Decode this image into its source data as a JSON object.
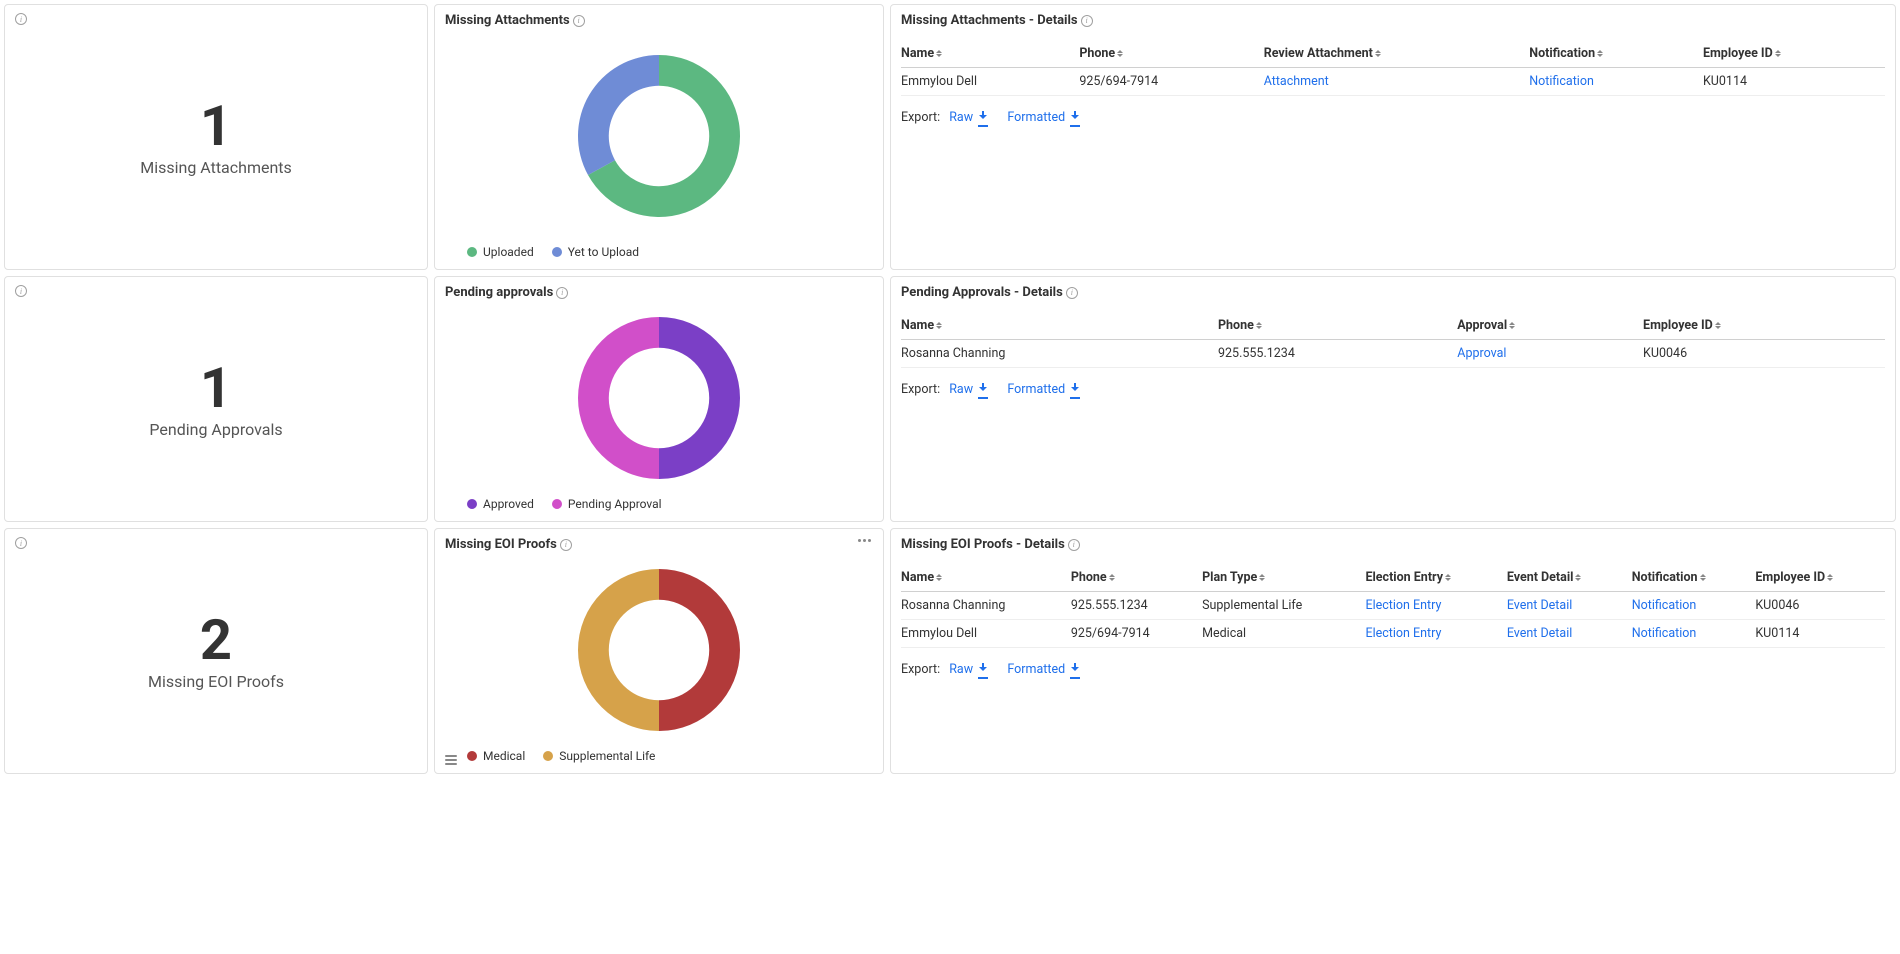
{
  "colors": {
    "link": "#1f6feb",
    "border": "#e0e0e0",
    "text": "#333333"
  },
  "stats": {
    "missing_attachments": {
      "value": "1",
      "label": "Missing Attachments"
    },
    "pending_approvals": {
      "value": "1",
      "label": "Pending Approvals"
    },
    "missing_eoi": {
      "value": "2",
      "label": "Missing EOI Proofs"
    }
  },
  "charts": {
    "missing_attachments": {
      "title": "Missing Attachments",
      "type": "donut",
      "inner_radius_pct": 62,
      "slices": [
        {
          "label": "Uploaded",
          "value": 67,
          "color": "#5cb881"
        },
        {
          "label": "Yet to Upload",
          "value": 33,
          "color": "#6f8cd6"
        }
      ]
    },
    "pending_approvals": {
      "title": "Pending approvals",
      "type": "donut",
      "inner_radius_pct": 62,
      "slices": [
        {
          "label": "Approved",
          "value": 50,
          "color": "#7b3fc6"
        },
        {
          "label": "Pending Approval",
          "value": 50,
          "color": "#d14fc9"
        }
      ]
    },
    "missing_eoi": {
      "title": "Missing EOI Proofs",
      "type": "donut",
      "inner_radius_pct": 62,
      "slices": [
        {
          "label": "Medical",
          "value": 50,
          "color": "#b23a3a"
        },
        {
          "label": "Supplemental Life",
          "value": 50,
          "color": "#d6a24a"
        }
      ]
    }
  },
  "tables": {
    "missing_attachments": {
      "title": "Missing Attachments - Details",
      "columns": [
        "Name",
        "Phone",
        "Review Attachment",
        "Notification",
        "Employee ID"
      ],
      "rows": [
        {
          "name": "Emmylou Dell",
          "phone": "925/694-7914",
          "attachment": "Attachment",
          "notification": "Notification",
          "empid": "KU0114"
        }
      ]
    },
    "pending_approvals": {
      "title": "Pending Approvals - Details",
      "columns": [
        "Name",
        "Phone",
        "Approval",
        "Employee ID"
      ],
      "rows": [
        {
          "name": "Rosanna Channing",
          "phone": "925.555.1234",
          "approval": "Approval",
          "empid": "KU0046"
        }
      ]
    },
    "missing_eoi": {
      "title": "Missing EOI Proofs - Details",
      "columns": [
        "Name",
        "Phone",
        "Plan Type",
        "Election Entry",
        "Event Detail",
        "Notification",
        "Employee ID"
      ],
      "rows": [
        {
          "name": "Rosanna Channing",
          "phone": "925.555.1234",
          "plan": "Supplemental Life",
          "election": "Election Entry",
          "event": "Event Detail",
          "notification": "Notification",
          "empid": "KU0046"
        },
        {
          "name": "Emmylou Dell",
          "phone": "925/694-7914",
          "plan": "Medical",
          "election": "Election Entry",
          "event": "Event Detail",
          "notification": "Notification",
          "empid": "KU0114"
        }
      ]
    }
  },
  "export": {
    "label": "Export:",
    "raw": "Raw",
    "formatted": "Formatted"
  }
}
